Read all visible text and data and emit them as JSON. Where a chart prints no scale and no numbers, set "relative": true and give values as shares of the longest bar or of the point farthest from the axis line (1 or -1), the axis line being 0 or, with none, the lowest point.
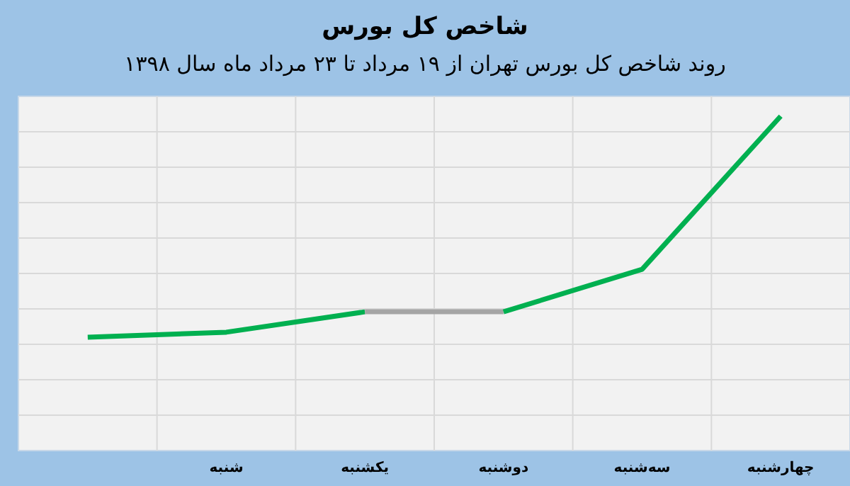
{
  "chart_data": {
    "type": "line",
    "title": "شاخص کل بورس",
    "subtitle": "روند شاخص کل بورس تهران از ۱۹ مرداد تا ۲۳ مرداد ماه سال ۱۳۹۸",
    "categories": [
      null,
      "شنبه",
      "یکشنبه",
      "دوشنبه",
      "سه‌شنبه",
      "چهارشنبه"
    ],
    "relative": true,
    "grid": true,
    "marker": "none",
    "line_style": "solid",
    "series": [
      {
        "color": "#00b050",
        "values": [
          0.339,
          0.354,
          0.415,
          null,
          null,
          null
        ]
      },
      {
        "color": "#a5a5a5",
        "values": [
          null,
          null,
          0.415,
          0.415,
          null,
          null
        ]
      },
      {
        "color": "#00b050",
        "values": [
          null,
          null,
          null,
          0.415,
          0.542,
          1
        ]
      }
    ]
  }
}
